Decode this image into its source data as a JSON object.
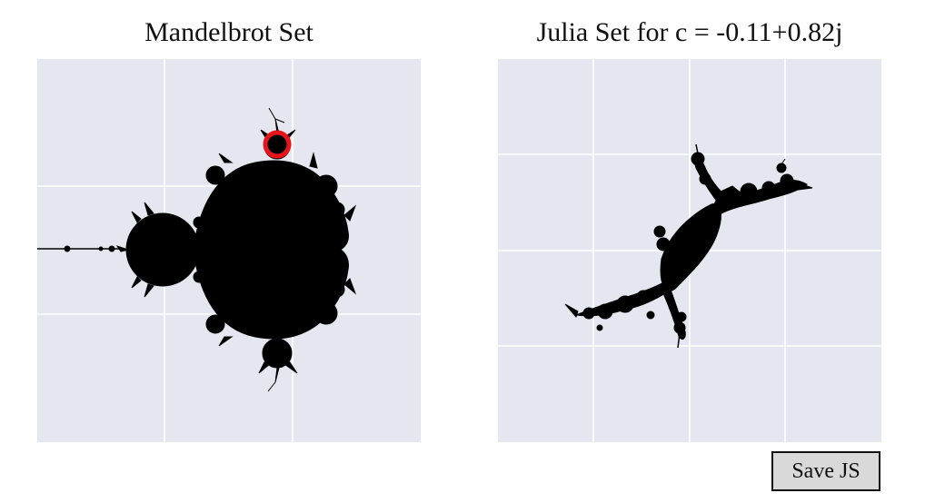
{
  "mandelbrot": {
    "title": "Mandelbrot Set"
  },
  "julia": {
    "title_prefix": "Julia Set for c = ",
    "c": "-0.11+0.82j"
  },
  "toolbar": {
    "save_label": "Save JS"
  },
  "colors": {
    "plot_background": "#e5e6ef",
    "grid": "#ffffff",
    "set_fill": "#000000",
    "marker": "#e8141b",
    "button_background": "#d9d9d9"
  },
  "icons": {
    "selection_marker": "marker-ring-icon"
  }
}
